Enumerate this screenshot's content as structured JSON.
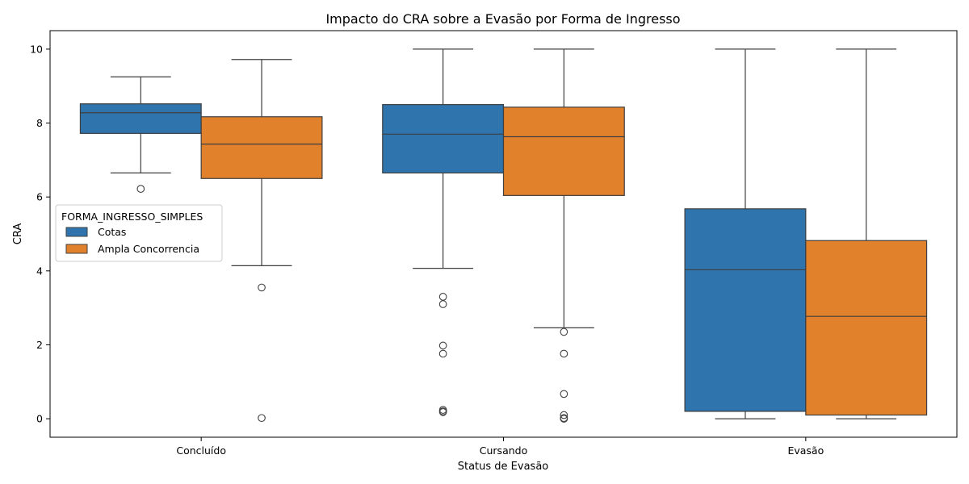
{
  "chart_data": {
    "type": "boxplot",
    "title": "Impacto do CRA sobre a Evasão por Forma de Ingresso",
    "xlabel": "Status de Evasão",
    "ylabel": "CRA",
    "categories": [
      "Concluído",
      "Cursando",
      "Evasão"
    ],
    "ylim": [
      -0.5,
      10.5
    ],
    "yticks": [
      "0",
      "2",
      "4",
      "6",
      "8",
      "10"
    ],
    "grid": false,
    "legend": {
      "title": "FORMA_INGRESSO_SIMPLES",
      "placement": "center-left"
    },
    "series": [
      {
        "name": "Cotas",
        "color": "#2f74ac",
        "boxes": [
          {
            "whisker_low": 6.65,
            "q1": 7.72,
            "median": 8.28,
            "q3": 8.52,
            "whisker_high": 9.25,
            "outliers": [
              6.22
            ]
          },
          {
            "whisker_low": 4.07,
            "q1": 6.65,
            "median": 7.7,
            "q3": 8.5,
            "whisker_high": 10.0,
            "outliers": [
              3.3,
              3.1,
              1.98,
              1.76,
              0.24,
              0.2,
              0.18
            ]
          },
          {
            "whisker_low": 0.0,
            "q1": 0.2,
            "median": 4.03,
            "q3": 5.68,
            "whisker_high": 10.0,
            "outliers": []
          }
        ]
      },
      {
        "name": "Ampla Concorrencia",
        "color": "#e1812c",
        "boxes": [
          {
            "whisker_low": 4.14,
            "q1": 6.5,
            "median": 7.43,
            "q3": 8.17,
            "whisker_high": 9.72,
            "outliers": [
              3.55,
              0.02
            ]
          },
          {
            "whisker_low": 2.46,
            "q1": 6.04,
            "median": 7.63,
            "q3": 8.43,
            "whisker_high": 10.0,
            "outliers": [
              2.35,
              1.76,
              0.67,
              0.1,
              0.02,
              0.0
            ]
          },
          {
            "whisker_low": 0.0,
            "q1": 0.1,
            "median": 2.77,
            "q3": 4.82,
            "whisker_high": 10.0,
            "outliers": []
          }
        ]
      }
    ]
  }
}
